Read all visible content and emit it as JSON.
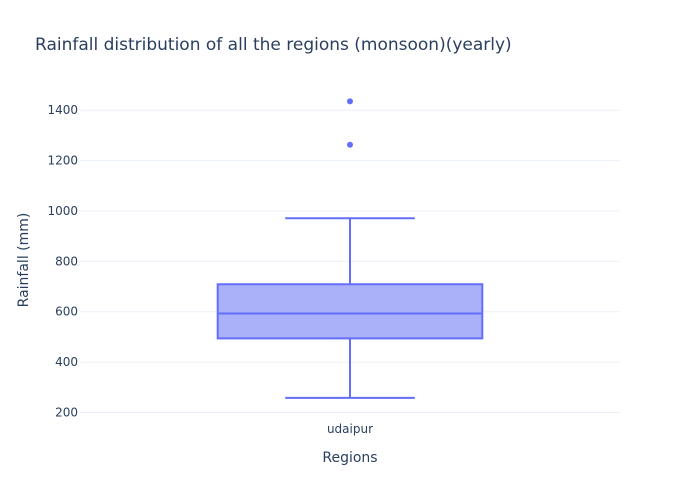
{
  "chart_data": {
    "type": "box",
    "title": "Rainfall distribution of all the regions (monsoon)(yearly)",
    "xlabel": "Regions",
    "ylabel": "Rainfall (mm)",
    "categories": [
      "udaipur"
    ],
    "series": [
      {
        "category": "udaipur",
        "min": 258,
        "q1": 494,
        "median": 593,
        "q3": 709,
        "max": 971,
        "outliers": [
          1263,
          1435
        ]
      }
    ],
    "yticks": [
      200,
      400,
      600,
      800,
      1000,
      1200,
      1400
    ],
    "ylim": [
      170,
      1520
    ],
    "grid": true,
    "colors": {
      "box_fill": "#abb1f9",
      "box_line": "#636efa",
      "grid": "#ebf0f8",
      "text": "#2a3f5f"
    }
  }
}
